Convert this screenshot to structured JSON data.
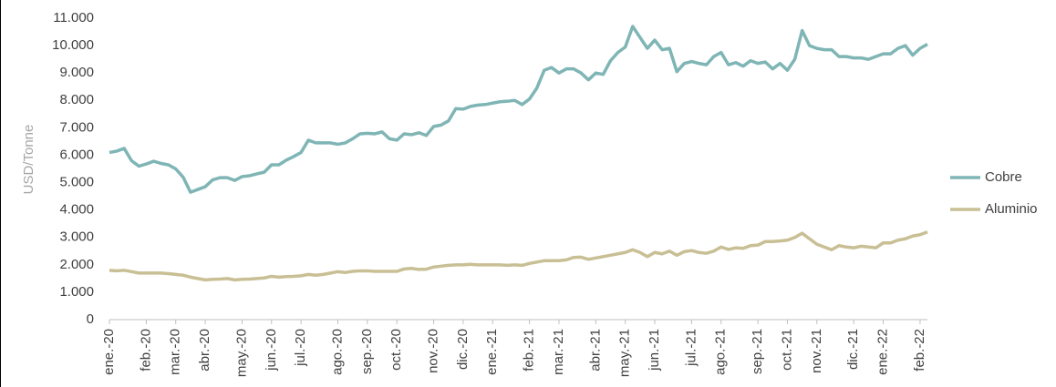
{
  "chart_data": {
    "type": "line",
    "y_label": "USD/Tonne",
    "categories": [
      "ene.-20",
      null,
      null,
      null,
      null,
      "feb.-20",
      null,
      null,
      null,
      "mar.-20",
      null,
      null,
      null,
      "abr.-20",
      null,
      null,
      null,
      null,
      "may.-20",
      null,
      null,
      null,
      "jun.-20",
      null,
      null,
      null,
      "jul.-20",
      null,
      null,
      null,
      null,
      "ago.-20",
      null,
      null,
      null,
      "sep.-20",
      null,
      null,
      null,
      "oct.-20",
      null,
      null,
      null,
      null,
      "nov.-20",
      null,
      null,
      null,
      "dic.-20",
      null,
      null,
      null,
      "ene.-21",
      null,
      null,
      null,
      null,
      "feb.-21",
      null,
      null,
      null,
      "mar.-21",
      null,
      null,
      null,
      null,
      "abr.-21",
      null,
      null,
      null,
      "may.-21",
      null,
      null,
      null,
      "jun.-21",
      null,
      null,
      null,
      null,
      "jul.-21",
      null,
      null,
      null,
      "ago.-21",
      null,
      null,
      null,
      null,
      "sep.-21",
      null,
      null,
      null,
      "oct.-21",
      null,
      null,
      null,
      "nov.-21",
      null,
      null,
      null,
      null,
      "dic.-21",
      null,
      null,
      null,
      "ene.-22",
      null,
      null,
      null,
      null,
      "feb.-22",
      null
    ],
    "series": [
      {
        "name": "Cobre",
        "color": "#7fb5b5",
        "values": [
          6100,
          6150,
          6250,
          5800,
          5600,
          5680,
          5780,
          5700,
          5650,
          5500,
          5200,
          4650,
          4750,
          4850,
          5100,
          5180,
          5180,
          5080,
          5220,
          5250,
          5320,
          5380,
          5650,
          5650,
          5820,
          5950,
          6100,
          6550,
          6450,
          6450,
          6450,
          6400,
          6450,
          6600,
          6780,
          6800,
          6780,
          6850,
          6600,
          6550,
          6780,
          6750,
          6820,
          6720,
          7050,
          7100,
          7250,
          7700,
          7680,
          7780,
          7830,
          7850,
          7900,
          7950,
          7970,
          8000,
          7850,
          8050,
          8450,
          9100,
          9200,
          9000,
          9150,
          9150,
          9000,
          8750,
          9000,
          8950,
          9450,
          9750,
          9950,
          10700,
          10300,
          9900,
          10200,
          9850,
          9900,
          9050,
          9350,
          9420,
          9350,
          9300,
          9600,
          9750,
          9300,
          9380,
          9250,
          9450,
          9350,
          9400,
          9150,
          9350,
          9100,
          9500,
          10550,
          10000,
          9900,
          9850,
          9850,
          9600,
          9600,
          9550,
          9550,
          9500,
          9600,
          9700,
          9700,
          9900,
          10000,
          9650,
          9900,
          10050
        ]
      },
      {
        "name": "Aluminio",
        "color": "#c9bf95",
        "values": [
          1800,
          1780,
          1800,
          1750,
          1700,
          1700,
          1700,
          1700,
          1680,
          1650,
          1620,
          1550,
          1500,
          1450,
          1470,
          1480,
          1500,
          1450,
          1470,
          1480,
          1500,
          1520,
          1580,
          1550,
          1570,
          1580,
          1600,
          1650,
          1620,
          1650,
          1700,
          1750,
          1720,
          1760,
          1780,
          1780,
          1760,
          1760,
          1760,
          1760,
          1850,
          1870,
          1830,
          1840,
          1920,
          1950,
          1980,
          2000,
          2000,
          2020,
          2000,
          2000,
          2000,
          2000,
          1980,
          2000,
          1980,
          2050,
          2100,
          2150,
          2150,
          2150,
          2180,
          2270,
          2280,
          2200,
          2250,
          2300,
          2350,
          2400,
          2450,
          2550,
          2450,
          2300,
          2450,
          2400,
          2500,
          2350,
          2480,
          2520,
          2450,
          2420,
          2500,
          2650,
          2560,
          2620,
          2600,
          2700,
          2720,
          2850,
          2850,
          2870,
          2900,
          3000,
          3150,
          2950,
          2750,
          2650,
          2550,
          2700,
          2650,
          2620,
          2680,
          2650,
          2620,
          2800,
          2800,
          2900,
          2950,
          3050,
          3100,
          3200
        ]
      }
    ],
    "ylim": [
      0,
      11000
    ],
    "yticks": [
      0,
      {
        "value": 1000,
        "label": "1.000"
      },
      {
        "value": 2000,
        "label": "2.000"
      },
      {
        "value": 3000,
        "label": "3.000"
      },
      {
        "value": 4000,
        "label": "4.000"
      },
      {
        "value": 5000,
        "label": "5.000"
      },
      {
        "value": 6000,
        "label": "6.000"
      },
      {
        "value": 7000,
        "label": "7.000"
      },
      {
        "value": 8000,
        "label": "8.000"
      },
      {
        "value": 9000,
        "label": "9.000"
      },
      {
        "value": 10000,
        "label": "10.000"
      },
      {
        "value": 11000,
        "label": "11.000"
      }
    ],
    "grid": false,
    "legend": "right"
  }
}
